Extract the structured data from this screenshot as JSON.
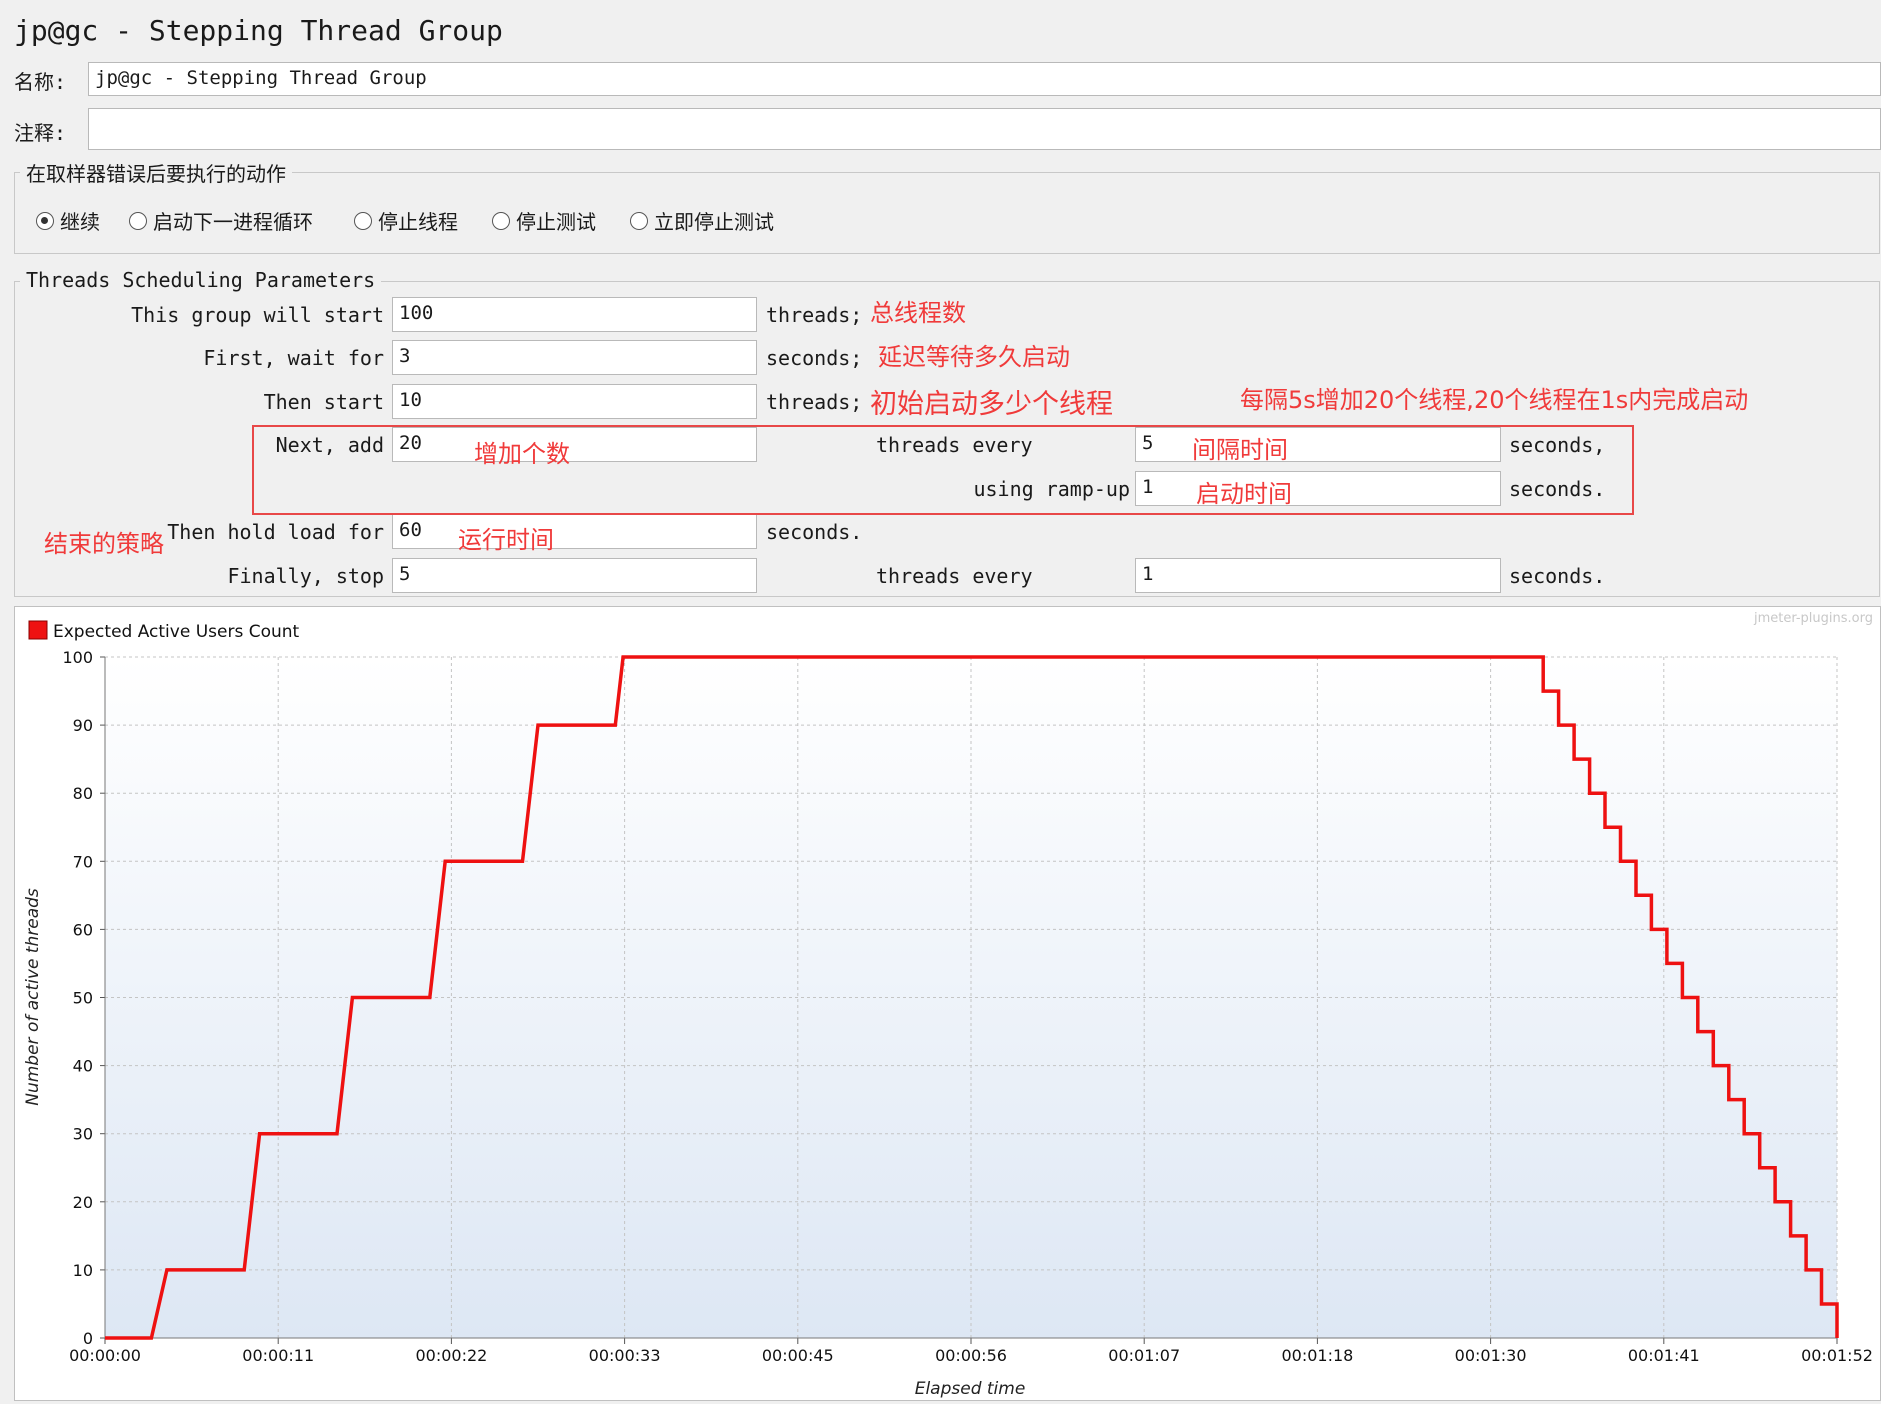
{
  "window": {
    "title": "jp@gc - Stepping Thread Group"
  },
  "form": {
    "name_label": "名称:",
    "name_value": "jp@gc - Stepping Thread Group",
    "comment_label": "注释:",
    "comment_value": ""
  },
  "error_action": {
    "title": "在取样器错误后要执行的动作",
    "options": [
      "继续",
      "启动下一进程循环",
      "停止线程",
      "停止测试",
      "立即停止测试"
    ],
    "selected": "继续"
  },
  "scheduling": {
    "title": "Threads Scheduling Parameters",
    "rows": {
      "start_threads": {
        "label": "This group will start",
        "value": "100",
        "unit": "threads;"
      },
      "initial_delay": {
        "label": "First, wait for",
        "value": "3",
        "unit": "seconds;"
      },
      "then_start": {
        "label": "Then start",
        "value": "10",
        "unit": "threads;"
      },
      "next_add": {
        "label": "Next, add",
        "value": "20",
        "mid_label": "threads every",
        "every_value": "5",
        "unit": "seconds,"
      },
      "ramp_up": {
        "label": "using ramp-up",
        "value": "1",
        "unit": "seconds."
      },
      "hold_load": {
        "label": "Then hold load for",
        "value": "60",
        "unit": "seconds."
      },
      "finally_stop": {
        "label": "Finally, stop",
        "value": "5",
        "mid_label": "threads every",
        "every_value": "1",
        "unit": "seconds."
      }
    }
  },
  "annotations": {
    "total_threads": "总线程数",
    "delay": "延迟等待多久启动",
    "initial": "初始启动多少个线程",
    "step_note": "每隔5s增加20个线程,20个线程在1s内完成启动",
    "add_count": "增加个数",
    "interval": "间隔时间",
    "rampup": "启动时间",
    "end_strategy": "结束的策略",
    "run_time": "运行时间"
  },
  "chart_data": {
    "type": "line",
    "watermark": "jmeter-plugins.org",
    "legend": "Expected Active Users Count",
    "series_color": "#ee1111",
    "ylabel": "Number of active threads",
    "xlabel": "Elapsed time",
    "ylim": [
      0,
      100
    ],
    "xlim_seconds": [
      0,
      112
    ],
    "y_ticks": [
      "0",
      "10",
      "20",
      "30",
      "40",
      "50",
      "60",
      "70",
      "80",
      "90",
      "100"
    ],
    "x_ticks": [
      "00:00:00",
      "00:00:11",
      "00:00:22",
      "00:00:33",
      "00:00:45",
      "00:00:56",
      "00:01:07",
      "00:01:18",
      "00:01:30",
      "00:01:41",
      "00:01:52"
    ],
    "points": [
      [
        0,
        0
      ],
      [
        3,
        0
      ],
      [
        4,
        10
      ],
      [
        9,
        10
      ],
      [
        10,
        30
      ],
      [
        15,
        30
      ],
      [
        16,
        50
      ],
      [
        21,
        50
      ],
      [
        22,
        70
      ],
      [
        27,
        70
      ],
      [
        28,
        90
      ],
      [
        33,
        90
      ],
      [
        33.5,
        100
      ],
      [
        93,
        100
      ],
      [
        93,
        95
      ],
      [
        94,
        95
      ],
      [
        94,
        90
      ],
      [
        95,
        90
      ],
      [
        95,
        85
      ],
      [
        96,
        85
      ],
      [
        96,
        80
      ],
      [
        97,
        80
      ],
      [
        97,
        75
      ],
      [
        98,
        75
      ],
      [
        98,
        70
      ],
      [
        99,
        70
      ],
      [
        99,
        65
      ],
      [
        100,
        65
      ],
      [
        100,
        60
      ],
      [
        101,
        60
      ],
      [
        101,
        55
      ],
      [
        102,
        55
      ],
      [
        102,
        50
      ],
      [
        103,
        50
      ],
      [
        103,
        45
      ],
      [
        104,
        45
      ],
      [
        104,
        40
      ],
      [
        105,
        40
      ],
      [
        105,
        35
      ],
      [
        106,
        35
      ],
      [
        106,
        30
      ],
      [
        107,
        30
      ],
      [
        107,
        25
      ],
      [
        108,
        25
      ],
      [
        108,
        20
      ],
      [
        109,
        20
      ],
      [
        109,
        15
      ],
      [
        110,
        15
      ],
      [
        110,
        10
      ],
      [
        111,
        10
      ],
      [
        111,
        5
      ],
      [
        112,
        5
      ],
      [
        112,
        0
      ]
    ]
  }
}
